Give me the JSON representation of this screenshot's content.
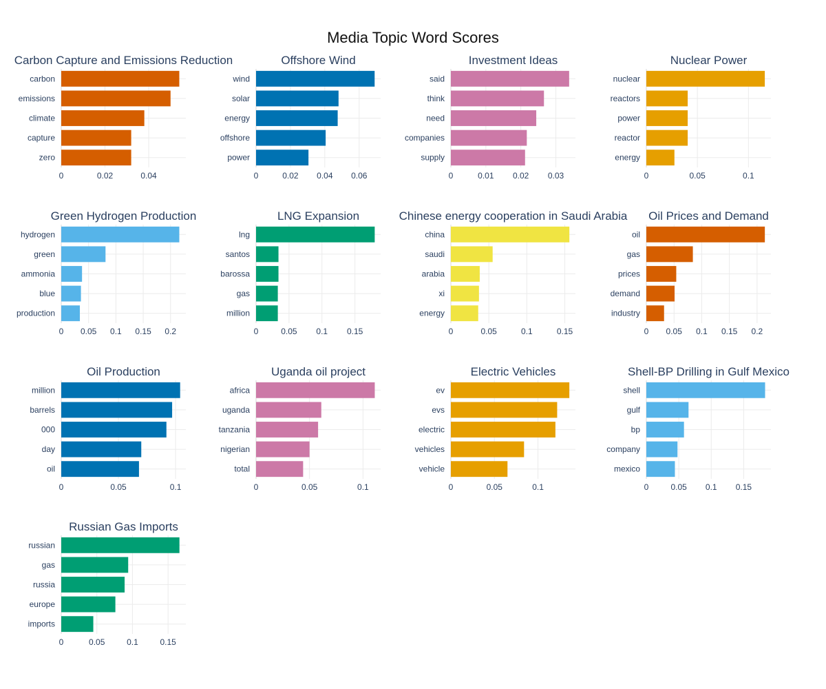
{
  "title": "Media Topic Word Scores",
  "chart_data": [
    {
      "type": "bar",
      "orientation": "horizontal",
      "title": "Carbon Capture and Emissions Reduction",
      "color": "#D55E00",
      "categories": [
        "carbon",
        "emissions",
        "climate",
        "capture",
        "zero"
      ],
      "values": [
        0.054,
        0.05,
        0.038,
        0.032,
        0.032
      ],
      "xlim": [
        0,
        0.057
      ],
      "xticks": [
        0,
        0.02,
        0.04
      ],
      "xtick_labels": [
        "0",
        "0.02",
        "0.04"
      ]
    },
    {
      "type": "bar",
      "orientation": "horizontal",
      "title": "Offshore Wind",
      "color": "#0072B2",
      "categories": [
        "wind",
        "solar",
        "energy",
        "offshore",
        "power"
      ],
      "values": [
        0.069,
        0.048,
        0.0475,
        0.0405,
        0.0305
      ],
      "xlim": [
        0,
        0.0725
      ],
      "xticks": [
        0,
        0.02,
        0.04,
        0.06
      ],
      "xtick_labels": [
        "0",
        "0.02",
        "0.04",
        "0.06"
      ]
    },
    {
      "type": "bar",
      "orientation": "horizontal",
      "title": "Investment Ideas",
      "color": "#CC79A7",
      "categories": [
        "said",
        "think",
        "need",
        "companies",
        "supply"
      ],
      "values": [
        0.0338,
        0.0266,
        0.0244,
        0.0217,
        0.0212
      ],
      "xlim": [
        0,
        0.0356
      ],
      "xticks": [
        0,
        0.01,
        0.02,
        0.03
      ],
      "xtick_labels": [
        "0",
        "0.01",
        "0.02",
        "0.03"
      ]
    },
    {
      "type": "bar",
      "orientation": "horizontal",
      "title": "Nuclear Power",
      "color": "#E69F00",
      "categories": [
        "nuclear",
        "reactors",
        "power",
        "reactor",
        "energy"
      ],
      "values": [
        0.116,
        0.0405,
        0.0405,
        0.0405,
        0.0275
      ],
      "xlim": [
        0,
        0.122
      ],
      "xticks": [
        0,
        0.05,
        0.1
      ],
      "xtick_labels": [
        "0",
        "0.05",
        "0.1"
      ]
    },
    {
      "type": "bar",
      "orientation": "horizontal",
      "title": "Green Hydrogen Production",
      "color": "#56B4E9",
      "categories": [
        "hydrogen",
        "green",
        "ammonia",
        "blue",
        "production"
      ],
      "values": [
        0.216,
        0.081,
        0.038,
        0.036,
        0.034
      ],
      "xlim": [
        0,
        0.228
      ],
      "xticks": [
        0,
        0.05,
        0.1,
        0.15,
        0.2
      ],
      "xtick_labels": [
        "0",
        "0.05",
        "0.1",
        "0.15",
        "0.2"
      ]
    },
    {
      "type": "bar",
      "orientation": "horizontal",
      "title": "LNG Expansion",
      "color": "#009E73",
      "categories": [
        "lng",
        "santos",
        "barossa",
        "gas",
        "million"
      ],
      "values": [
        0.18,
        0.034,
        0.034,
        0.033,
        0.033
      ],
      "xlim": [
        0,
        0.189
      ],
      "xticks": [
        0,
        0.05,
        0.1,
        0.15
      ],
      "xtick_labels": [
        "0",
        "0.05",
        "0.1",
        "0.15"
      ]
    },
    {
      "type": "bar",
      "orientation": "horizontal",
      "title": "Chinese energy cooperation in Saudi Arabia",
      "color": "#F0E442",
      "categories": [
        "china",
        "saudi",
        "arabia",
        "xi",
        "energy"
      ],
      "values": [
        0.156,
        0.055,
        0.038,
        0.037,
        0.036
      ],
      "xlim": [
        0,
        0.164
      ],
      "xticks": [
        0,
        0.05,
        0.1,
        0.15
      ],
      "xtick_labels": [
        "0",
        "0.05",
        "0.1",
        "0.15"
      ]
    },
    {
      "type": "bar",
      "orientation": "horizontal",
      "title": "Oil Prices and Demand",
      "color": "#D55E00",
      "categories": [
        "oil",
        "gas",
        "prices",
        "demand",
        "industry"
      ],
      "values": [
        0.214,
        0.084,
        0.054,
        0.051,
        0.032
      ],
      "xlim": [
        0,
        0.225
      ],
      "xticks": [
        0,
        0.05,
        0.1,
        0.15,
        0.2
      ],
      "xtick_labels": [
        "0",
        "0.05",
        "0.1",
        "0.15",
        "0.2"
      ]
    },
    {
      "type": "bar",
      "orientation": "horizontal",
      "title": "Oil Production",
      "color": "#0072B2",
      "categories": [
        "million",
        "barrels",
        "000",
        "day",
        "oil"
      ],
      "values": [
        0.104,
        0.097,
        0.092,
        0.07,
        0.068
      ],
      "xlim": [
        0,
        0.109
      ],
      "xticks": [
        0,
        0.05,
        0.1
      ],
      "xtick_labels": [
        "0",
        "0.05",
        "0.1"
      ]
    },
    {
      "type": "bar",
      "orientation": "horizontal",
      "title": "Uganda oil project",
      "color": "#CC79A7",
      "categories": [
        "africa",
        "uganda",
        "tanzania",
        "nigerian",
        "total"
      ],
      "values": [
        0.111,
        0.061,
        0.058,
        0.05,
        0.044
      ],
      "xlim": [
        0,
        0.1165
      ],
      "xticks": [
        0,
        0.05,
        0.1
      ],
      "xtick_labels": [
        "0",
        "0.05",
        "0.1"
      ]
    },
    {
      "type": "bar",
      "orientation": "horizontal",
      "title": "Electric Vehicles",
      "color": "#E69F00",
      "categories": [
        "ev",
        "evs",
        "electric",
        "vehicles",
        "vehicle"
      ],
      "values": [
        0.136,
        0.122,
        0.12,
        0.084,
        0.065
      ],
      "xlim": [
        0,
        0.143
      ],
      "xticks": [
        0,
        0.05,
        0.1
      ],
      "xtick_labels": [
        "0",
        "0.05",
        "0.1"
      ]
    },
    {
      "type": "bar",
      "orientation": "horizontal",
      "title": "Shell-BP Drilling in Gulf Mexico",
      "color": "#56B4E9",
      "categories": [
        "shell",
        "gulf",
        "bp",
        "company",
        "mexico"
      ],
      "values": [
        0.183,
        0.065,
        0.058,
        0.048,
        0.044
      ],
      "xlim": [
        0,
        0.192
      ],
      "xticks": [
        0,
        0.05,
        0.1,
        0.15
      ],
      "xtick_labels": [
        "0",
        "0.05",
        "0.1",
        "0.15"
      ]
    },
    {
      "type": "bar",
      "orientation": "horizontal",
      "title": "Russian Gas Imports",
      "color": "#009E73",
      "categories": [
        "russian",
        "gas",
        "russia",
        "europe",
        "imports"
      ],
      "values": [
        0.166,
        0.094,
        0.089,
        0.076,
        0.045
      ],
      "xlim": [
        0,
        0.175
      ],
      "xticks": [
        0,
        0.05,
        0.1,
        0.15
      ],
      "xtick_labels": [
        "0",
        "0.05",
        "0.1",
        "0.15"
      ]
    }
  ]
}
